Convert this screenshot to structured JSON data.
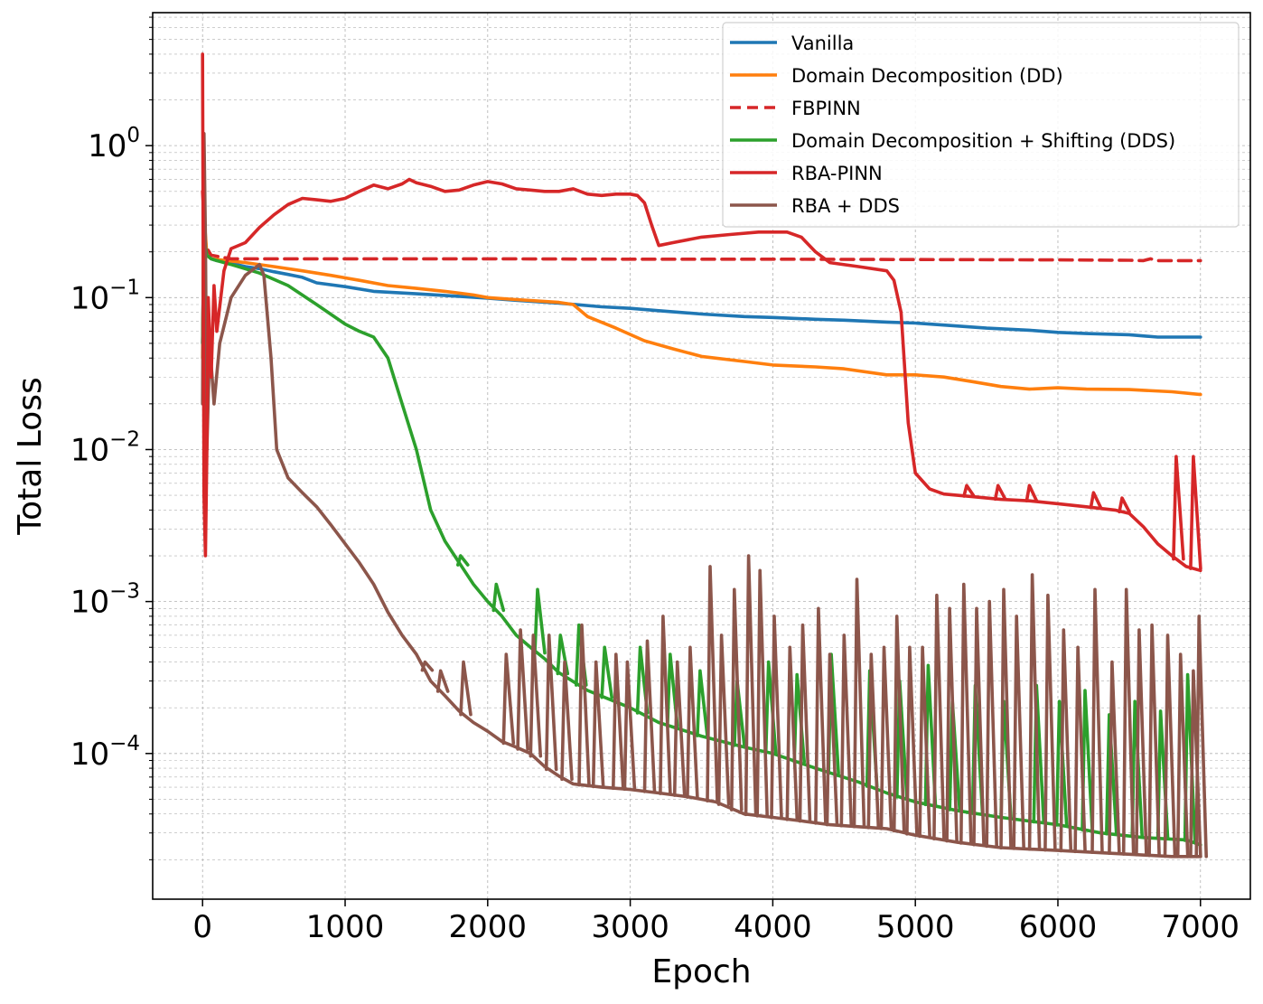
{
  "chart_data": {
    "type": "line",
    "title": "",
    "xlabel": "Epoch",
    "ylabel": "Total Loss",
    "xscale": "linear",
    "yscale": "log",
    "xlim": [
      -350,
      7350
    ],
    "ylim": [
      1.1e-05,
      7.5
    ],
    "grid": true,
    "legend_position": "top-right",
    "xticks": [
      0,
      1000,
      2000,
      3000,
      4000,
      5000,
      6000,
      7000
    ],
    "xtick_labels": [
      "0",
      "1000",
      "2000",
      "3000",
      "4000",
      "5000",
      "6000",
      "7000"
    ],
    "yticks": [
      0.0001,
      0.001,
      0.01,
      0.1,
      1
    ],
    "ytick_labels": [
      {
        "base": "10",
        "exp": "−4"
      },
      {
        "base": "10",
        "exp": "−3"
      },
      {
        "base": "10",
        "exp": "−2"
      },
      {
        "base": "10",
        "exp": "−1"
      },
      {
        "base": "10",
        "exp": "0"
      }
    ],
    "series": [
      {
        "name": "Vanilla",
        "color": "#1f77b4",
        "dash": "solid",
        "x": [
          0,
          10,
          30,
          60,
          100,
          200,
          300,
          400,
          500,
          600,
          700,
          800,
          1000,
          1200,
          1500,
          1800,
          2000,
          2200,
          2500,
          2800,
          3000,
          3200,
          3500,
          3800,
          4000,
          4300,
          4500,
          4800,
          5000,
          5300,
          5500,
          5800,
          6000,
          6200,
          6500,
          6700,
          7000
        ],
        "y": [
          0.05,
          0.3,
          0.19,
          0.18,
          0.175,
          0.168,
          0.16,
          0.155,
          0.148,
          0.142,
          0.136,
          0.125,
          0.118,
          0.11,
          0.106,
          0.102,
          0.099,
          0.096,
          0.092,
          0.087,
          0.085,
          0.082,
          0.078,
          0.075,
          0.074,
          0.072,
          0.071,
          0.069,
          0.068,
          0.065,
          0.063,
          0.061,
          0.059,
          0.058,
          0.057,
          0.055,
          0.055
        ]
      },
      {
        "name": "Domain Decomposition (DD)",
        "color": "#ff7f0e",
        "dash": "solid",
        "x": [
          0,
          10,
          30,
          60,
          100,
          300,
          500,
          700,
          900,
          1100,
          1300,
          1500,
          1700,
          1900,
          2000,
          2200,
          2500,
          2600,
          2700,
          2900,
          3100,
          3300,
          3500,
          3800,
          4000,
          4300,
          4500,
          4800,
          5000,
          5200,
          5400,
          5600,
          5800,
          6000,
          6200,
          6500,
          6800,
          7000
        ],
        "y": [
          0.04,
          0.35,
          0.19,
          0.18,
          0.178,
          0.17,
          0.16,
          0.15,
          0.14,
          0.13,
          0.12,
          0.115,
          0.11,
          0.104,
          0.1,
          0.097,
          0.093,
          0.09,
          0.075,
          0.063,
          0.052,
          0.046,
          0.041,
          0.038,
          0.036,
          0.035,
          0.034,
          0.031,
          0.031,
          0.03,
          0.028,
          0.026,
          0.025,
          0.0255,
          0.025,
          0.0248,
          0.024,
          0.023
        ]
      },
      {
        "name": "FBPINN",
        "color": "#d62728",
        "dash": "dashed",
        "x": [
          0,
          20,
          60,
          200,
          1000,
          2000,
          3000,
          4000,
          5000,
          6000,
          6500,
          6600,
          6650,
          6700,
          7000
        ],
        "y": [
          0.5,
          0.22,
          0.19,
          0.18,
          0.18,
          0.18,
          0.179,
          0.179,
          0.178,
          0.177,
          0.176,
          0.175,
          0.18,
          0.175,
          0.175
        ]
      },
      {
        "name": "Domain Decomposition + Shifting (DDS)",
        "color": "#2ca02c",
        "dash": "solid",
        "x": [
          0,
          10,
          30,
          60,
          100,
          200,
          400,
          600,
          800,
          1000,
          1100,
          1200,
          1300,
          1400,
          1500,
          1600,
          1700,
          1800,
          1900,
          2000,
          2100,
          2200,
          2300,
          2400,
          2500,
          2700,
          3000,
          3200,
          3500,
          3800,
          4000,
          4300,
          4600,
          4800,
          5000,
          5300,
          5600,
          6000,
          6300,
          6600,
          6900,
          7000
        ],
        "y": [
          0.05,
          0.25,
          0.19,
          0.18,
          0.175,
          0.165,
          0.145,
          0.12,
          0.09,
          0.067,
          0.06,
          0.055,
          0.04,
          0.02,
          0.01,
          0.004,
          0.0025,
          0.0018,
          0.0013,
          0.001,
          0.0008,
          0.0006,
          0.0005,
          0.00042,
          0.00034,
          0.00026,
          0.0002,
          0.00016,
          0.00013,
          0.00011,
          0.0001,
          8e-05,
          6.5e-05,
          5.5e-05,
          4.8e-05,
          4.2e-05,
          3.8e-05,
          3.4e-05,
          3e-05,
          2.8e-05,
          2.7e-05,
          2.5e-05
        ]
      },
      {
        "name": "RBA-PINN",
        "color": "#d62728",
        "dash": "solid",
        "x": [
          0,
          10,
          20,
          30,
          40,
          60,
          80,
          100,
          150,
          200,
          300,
          400,
          500,
          600,
          700,
          800,
          900,
          1000,
          1100,
          1200,
          1300,
          1400,
          1450,
          1500,
          1600,
          1700,
          1800,
          1900,
          2000,
          2100,
          2200,
          2300,
          2400,
          2500,
          2600,
          2700,
          2800,
          2900,
          3000,
          3050,
          3100,
          3150,
          3200,
          3300,
          3500,
          3700,
          3900,
          4100,
          4200,
          4300,
          4400,
          4600,
          4800,
          4850,
          4900,
          4950,
          5000,
          5100,
          5200,
          5400,
          5600,
          5800,
          6000,
          6200,
          6400,
          6500,
          6600,
          6700,
          6800,
          6900,
          7000
        ],
        "y": [
          4.0,
          0.005,
          0.002,
          0.01,
          0.1,
          0.03,
          0.12,
          0.06,
          0.15,
          0.21,
          0.23,
          0.29,
          0.35,
          0.41,
          0.45,
          0.44,
          0.43,
          0.45,
          0.5,
          0.55,
          0.52,
          0.56,
          0.6,
          0.57,
          0.54,
          0.5,
          0.51,
          0.55,
          0.58,
          0.56,
          0.52,
          0.51,
          0.5,
          0.5,
          0.52,
          0.48,
          0.47,
          0.48,
          0.48,
          0.47,
          0.42,
          0.3,
          0.22,
          0.23,
          0.25,
          0.26,
          0.27,
          0.27,
          0.25,
          0.2,
          0.17,
          0.16,
          0.15,
          0.13,
          0.08,
          0.015,
          0.007,
          0.0055,
          0.0051,
          0.0049,
          0.0047,
          0.0046,
          0.0044,
          0.0042,
          0.004,
          0.0038,
          0.0031,
          0.0024,
          0.002,
          0.0017,
          0.0016
        ]
      },
      {
        "name": "RBA + DDS",
        "color": "#8c564b",
        "dash": "solid",
        "x": [
          0,
          10,
          20,
          30,
          50,
          80,
          120,
          200,
          300,
          400,
          430,
          480,
          520,
          600,
          700,
          800,
          900,
          1000,
          1100,
          1200,
          1300,
          1400,
          1500,
          1600,
          1700,
          1800,
          1900,
          2000,
          2100,
          2200,
          2300,
          2400,
          2500,
          2600,
          2800,
          3000,
          3200,
          3400,
          3600,
          3800,
          4000,
          4200,
          4400,
          4600,
          4800,
          5000,
          5300,
          5600,
          6000,
          6400,
          6800,
          7000
        ],
        "y": [
          0.02,
          1.2,
          0.25,
          0.01,
          0.05,
          0.02,
          0.05,
          0.1,
          0.14,
          0.165,
          0.14,
          0.04,
          0.01,
          0.0065,
          0.0052,
          0.0042,
          0.0032,
          0.0024,
          0.0018,
          0.0013,
          0.00085,
          0.0006,
          0.00045,
          0.0003,
          0.00024,
          0.00019,
          0.00016,
          0.00014,
          0.00012,
          0.00011,
          0.0001,
          8.2e-05,
          7.1e-05,
          6.3e-05,
          6e-05,
          5.8e-05,
          5.5e-05,
          5.2e-05,
          4.8e-05,
          4e-05,
          3.8e-05,
          3.6e-05,
          3.4e-05,
          3.3e-05,
          3.2e-05,
          2.9e-05,
          2.6e-05,
          2.4e-05,
          2.3e-05,
          2.2e-05,
          2.1e-05,
          2.1e-05
        ]
      }
    ],
    "spikes": [
      {
        "series": 3,
        "x": [
          1810,
          2060,
          2350,
          2510,
          2640,
          2820,
          3070,
          3280,
          3490,
          3750,
          3970,
          4170,
          4410,
          4680,
          4890,
          5090,
          5260,
          5420,
          5620,
          5850,
          6010,
          6190,
          6360,
          6540,
          6720,
          6910
        ],
        "peak": [
          0.002,
          0.0013,
          0.0012,
          0.0006,
          0.0007,
          0.0005,
          0.0005,
          0.00045,
          0.00035,
          0.0003,
          0.0004,
          0.00033,
          0.00045,
          0.00035,
          0.0003,
          0.00038,
          0.00022,
          0.00028,
          0.00022,
          0.00028,
          0.00022,
          0.00026,
          0.00018,
          0.00022,
          0.00019,
          0.00033
        ]
      },
      {
        "series": 4,
        "x": [
          5360,
          5580,
          5800,
          6250,
          6450,
          6830,
          6950
        ],
        "peak": [
          0.0058,
          0.0058,
          0.0058,
          0.0052,
          0.0048,
          0.009,
          0.009
        ]
      },
      {
        "series": 5,
        "x": [
          1560,
          1670,
          1830,
          2130,
          2230,
          2320,
          2430,
          2540,
          2660,
          2760,
          2900,
          2980,
          3120,
          3230,
          3330,
          3420,
          3560,
          3640,
          3730,
          3830,
          3910,
          4010,
          4120,
          4210,
          4320,
          4400,
          4500,
          4590,
          4690,
          4780,
          4870,
          4960,
          5050,
          5150,
          5240,
          5340,
          5430,
          5520,
          5620,
          5710,
          5820,
          5930,
          6040,
          6140,
          6260,
          6380,
          6480,
          6570,
          6660,
          6770,
          6860,
          6950,
          6990
        ],
        "peak": [
          0.0004,
          0.00035,
          0.0004,
          0.00045,
          0.00065,
          0.0006,
          0.0006,
          0.0004,
          0.0007,
          0.0004,
          0.00045,
          0.0004,
          0.00055,
          0.0008,
          0.0004,
          0.0005,
          0.0017,
          0.0006,
          0.0012,
          0.002,
          0.0016,
          0.0008,
          0.0005,
          0.0007,
          0.0009,
          0.00045,
          0.0006,
          0.0014,
          0.00045,
          0.0005,
          0.0008,
          0.0005,
          0.0005,
          0.0011,
          0.0009,
          0.0013,
          0.0009,
          0.001,
          0.0012,
          0.0008,
          0.0015,
          0.0011,
          0.00065,
          0.0005,
          0.0012,
          0.0004,
          0.0012,
          0.00065,
          0.0007,
          0.0006,
          0.00045,
          0.00035,
          0.0008
        ]
      }
    ]
  }
}
